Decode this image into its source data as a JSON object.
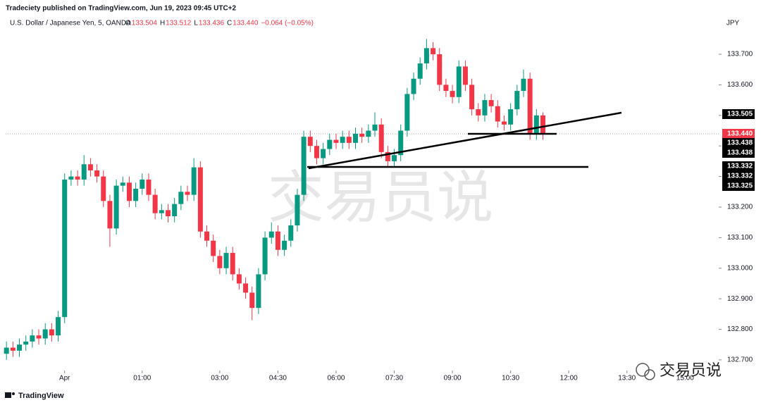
{
  "header": {
    "publisher": "Tradeciety published on TradingView.com, Jun 19, 2023 09:45 UTC+2",
    "symbol": "U.S. Dollar / Japanese Yen, 5, OANDA",
    "ohlc": [
      {
        "label": "O",
        "value": "133.504"
      },
      {
        "label": "H",
        "value": "133.512"
      },
      {
        "label": "L",
        "value": "133.436"
      },
      {
        "label": "C",
        "value": "133.440"
      }
    ],
    "change": "−0.064 (−0.05%)"
  },
  "chart_data": {
    "type": "candlestick",
    "currency": "JPY",
    "up_color": "#089981",
    "down_color": "#f23645",
    "x": [
      -150,
      -140,
      -130,
      -120,
      -110,
      -100,
      -90,
      -80,
      -70,
      -60,
      -50,
      -40,
      -30,
      -20,
      -10,
      0,
      10,
      20,
      30,
      40,
      50,
      60,
      70,
      80,
      90,
      100,
      110,
      120,
      130,
      140,
      150,
      160,
      170,
      180,
      190,
      200,
      210,
      220,
      230,
      240,
      250,
      260,
      270,
      280,
      290,
      300,
      310,
      320,
      330,
      340,
      350,
      360,
      370,
      380,
      390,
      400,
      410,
      420,
      430,
      440,
      450,
      460,
      470,
      480,
      490,
      500,
      510,
      520,
      530,
      540,
      550,
      560,
      570,
      580,
      590,
      600,
      610,
      620,
      630,
      640,
      650,
      660,
      670,
      680
    ],
    "open": [
      132.72,
      132.74,
      132.73,
      132.75,
      132.76,
      132.78,
      132.77,
      132.8,
      132.78,
      132.84,
      133.29,
      133.3,
      133.29,
      133.34,
      133.32,
      133.3,
      133.22,
      133.13,
      133.27,
      133.28,
      133.22,
      133.26,
      133.29,
      133.24,
      133.18,
      133.19,
      133.17,
      133.21,
      133.25,
      133.24,
      133.33,
      133.12,
      133.09,
      133.04,
      133.0,
      133.05,
      132.98,
      132.95,
      132.92,
      132.87,
      132.98,
      133.1,
      133.12,
      133.06,
      133.09,
      133.14,
      133.24,
      133.43,
      133.4,
      133.36,
      133.39,
      133.42,
      133.41,
      133.43,
      133.41,
      133.44,
      133.43,
      133.45,
      133.47,
      133.38,
      133.35,
      133.37,
      133.45,
      133.57,
      133.62,
      133.67,
      133.72,
      133.7,
      133.6,
      133.58,
      133.56,
      133.66,
      133.6,
      133.52,
      133.5,
      133.55,
      133.53,
      133.48,
      133.47,
      133.52,
      133.58,
      133.62,
      133.44,
      133.5
    ],
    "high": [
      132.76,
      132.76,
      132.77,
      132.78,
      132.8,
      132.8,
      132.82,
      132.82,
      132.86,
      133.31,
      133.32,
      133.32,
      133.37,
      133.36,
      133.34,
      133.32,
      133.24,
      133.29,
      133.3,
      133.3,
      133.28,
      133.31,
      133.31,
      133.26,
      133.21,
      133.21,
      133.23,
      133.27,
      133.27,
      133.36,
      133.35,
      133.14,
      133.11,
      133.06,
      133.07,
      133.07,
      133.0,
      132.97,
      132.94,
      133.0,
      133.12,
      133.15,
      133.14,
      133.11,
      133.16,
      133.26,
      133.45,
      133.45,
      133.42,
      133.41,
      133.44,
      133.44,
      133.45,
      133.45,
      133.46,
      133.46,
      133.47,
      133.51,
      133.49,
      133.4,
      133.39,
      133.47,
      133.59,
      133.64,
      133.69,
      133.75,
      133.74,
      133.72,
      133.62,
      133.6,
      133.68,
      133.68,
      133.62,
      133.54,
      133.57,
      133.57,
      133.55,
      133.5,
      133.54,
      133.6,
      133.65,
      133.64,
      133.52,
      133.51
    ],
    "low": [
      132.7,
      132.71,
      132.71,
      132.73,
      132.74,
      132.75,
      132.75,
      132.76,
      132.76,
      132.82,
      133.27,
      133.27,
      133.27,
      133.3,
      133.28,
      133.2,
      133.07,
      133.11,
      133.25,
      133.2,
      133.2,
      133.24,
      133.22,
      133.16,
      133.16,
      133.15,
      133.15,
      133.19,
      133.22,
      133.22,
      133.1,
      133.07,
      133.02,
      132.98,
      132.98,
      132.96,
      132.93,
      132.9,
      132.83,
      132.85,
      132.96,
      133.08,
      133.04,
      133.04,
      133.07,
      133.12,
      133.22,
      133.38,
      133.34,
      133.34,
      133.37,
      133.39,
      133.39,
      133.39,
      133.39,
      133.41,
      133.41,
      133.43,
      133.36,
      133.33,
      133.33,
      133.35,
      133.43,
      133.55,
      133.6,
      133.65,
      133.68,
      133.58,
      133.56,
      133.54,
      133.54,
      133.58,
      133.5,
      133.48,
      133.48,
      133.51,
      133.46,
      133.45,
      133.45,
      133.5,
      133.56,
      133.42,
      133.42,
      133.42
    ],
    "close": [
      132.74,
      132.73,
      132.75,
      132.76,
      132.78,
      132.77,
      132.8,
      132.78,
      132.84,
      133.29,
      133.3,
      133.29,
      133.34,
      133.32,
      133.3,
      133.22,
      133.13,
      133.27,
      133.28,
      133.22,
      133.26,
      133.29,
      133.24,
      133.18,
      133.19,
      133.17,
      133.21,
      133.25,
      133.24,
      133.33,
      133.12,
      133.09,
      133.04,
      133.0,
      133.05,
      132.98,
      132.95,
      132.92,
      132.87,
      132.98,
      133.1,
      133.12,
      133.06,
      133.09,
      133.14,
      133.24,
      133.43,
      133.4,
      133.36,
      133.39,
      133.42,
      133.41,
      133.43,
      133.41,
      133.44,
      133.43,
      133.45,
      133.47,
      133.38,
      133.35,
      133.37,
      133.45,
      133.57,
      133.62,
      133.67,
      133.72,
      133.7,
      133.6,
      133.58,
      133.56,
      133.66,
      133.6,
      133.52,
      133.5,
      133.55,
      133.53,
      133.48,
      133.47,
      133.52,
      133.58,
      133.62,
      133.44,
      133.5,
      133.44
    ],
    "xlim": [
      -160,
      952
    ],
    "xticks": [
      {
        "value": -60,
        "label": "Apr"
      },
      {
        "value": 60,
        "label": "01:00"
      },
      {
        "value": 180,
        "label": "03:00"
      },
      {
        "value": 270,
        "label": "04:30"
      },
      {
        "value": 360,
        "label": "06:00"
      },
      {
        "value": 450,
        "label": "07:30"
      },
      {
        "value": 540,
        "label": "09:00"
      },
      {
        "value": 630,
        "label": "10:30"
      },
      {
        "value": 720,
        "label": "12:00"
      },
      {
        "value": 810,
        "label": "13:30"
      },
      {
        "value": 900,
        "label": "15:00"
      }
    ],
    "ylim": [
      132.633,
      133.813
    ],
    "yticks": [
      {
        "value": 132.7,
        "label": "132.700"
      },
      {
        "value": 132.8,
        "label": "132.800"
      },
      {
        "value": 132.9,
        "label": "132.900"
      },
      {
        "value": 133.0,
        "label": "133.000"
      },
      {
        "value": 133.1,
        "label": "133.100"
      },
      {
        "value": 133.2,
        "label": "133.200"
      },
      {
        "value": 133.3,
        "label": "133.300"
      },
      {
        "value": 133.4,
        "label": "133.400"
      },
      {
        "value": 133.5,
        "label": "133.500"
      },
      {
        "value": 133.6,
        "label": "133.600"
      },
      {
        "value": 133.7,
        "label": "133.700"
      }
    ],
    "price_labels": [
      {
        "label": "133.505",
        "color": "#000000"
      },
      {
        "label": "133.440",
        "color": "#f23645"
      },
      {
        "label": "133.438",
        "color": "#000000"
      },
      {
        "label": "133.438",
        "color": "#000000"
      },
      {
        "label": "133.332",
        "color": "#000000"
      },
      {
        "label": "133.332",
        "color": "#000000"
      },
      {
        "label": "133.325",
        "color": "#000000"
      }
    ]
  },
  "watermark": "交易员说",
  "footer": {
    "brand": "TradingView",
    "wechat": "交易员说"
  }
}
